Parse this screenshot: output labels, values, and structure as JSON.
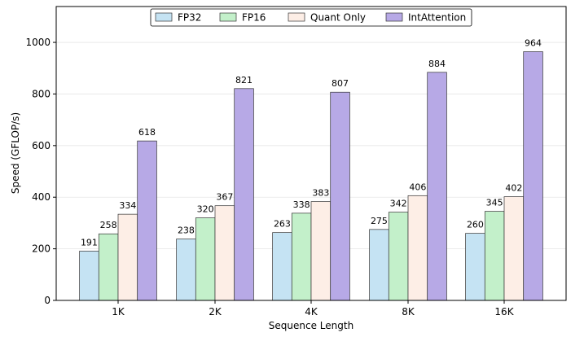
{
  "chart_data": {
    "type": "bar",
    "title": "",
    "xlabel": "Sequence Length",
    "ylabel": "Speed (GFLOP/s)",
    "ylim": [
      0,
      1139
    ],
    "yticks": [
      0,
      200,
      400,
      600,
      800,
      1000
    ],
    "grid": true,
    "legend_position": "upper center",
    "categories": [
      "1K",
      "2K",
      "4K",
      "8K",
      "16K"
    ],
    "series": [
      {
        "name": "FP32",
        "color": "#c5e3f3",
        "values": [
          191,
          238,
          263,
          275,
          260
        ]
      },
      {
        "name": "FP16",
        "color": "#c3f0ca",
        "values": [
          258,
          320,
          338,
          342,
          345
        ]
      },
      {
        "name": "Quant Only",
        "color": "#fdeee6",
        "values": [
          334,
          367,
          383,
          406,
          402
        ]
      },
      {
        "name": "IntAttention",
        "color": "#b7a9e6",
        "values": [
          618,
          821,
          807,
          884,
          964
        ]
      }
    ]
  },
  "legend": {
    "items": [
      "FP32",
      "FP16",
      "Quant Only",
      "IntAttention"
    ]
  }
}
